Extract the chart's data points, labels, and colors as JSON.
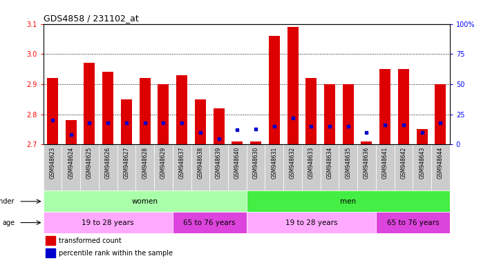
{
  "title": "GDS4858 / 231102_at",
  "samples": [
    "GSM948623",
    "GSM948624",
    "GSM948625",
    "GSM948626",
    "GSM948627",
    "GSM948628",
    "GSM948629",
    "GSM948637",
    "GSM948638",
    "GSM948639",
    "GSM948640",
    "GSM948630",
    "GSM948631",
    "GSM948632",
    "GSM948633",
    "GSM948634",
    "GSM948635",
    "GSM948636",
    "GSM948641",
    "GSM948642",
    "GSM948643",
    "GSM948644"
  ],
  "transformed_count": [
    2.92,
    2.78,
    2.97,
    2.94,
    2.85,
    2.92,
    2.9,
    2.93,
    2.85,
    2.82,
    2.71,
    2.71,
    3.06,
    3.09,
    2.92,
    2.9,
    2.9,
    2.71,
    2.95,
    2.95,
    2.75,
    2.9
  ],
  "percentile_rank": [
    20,
    8,
    18,
    18,
    18,
    18,
    18,
    18,
    10,
    5,
    12,
    13,
    15,
    22,
    15,
    15,
    15,
    10,
    16,
    16,
    10,
    18
  ],
  "ymin": 2.7,
  "ymax": 3.1,
  "yticks_left": [
    2.7,
    2.8,
    2.9,
    3.0,
    3.1
  ],
  "yticks_right": [
    0,
    25,
    50,
    75,
    100
  ],
  "bar_color": "#dd0000",
  "dot_color": "#0000cc",
  "gender_spans": [
    {
      "label": "women",
      "start": 0,
      "end": 11,
      "color": "#aaffaa"
    },
    {
      "label": "men",
      "start": 11,
      "end": 22,
      "color": "#44ee44"
    }
  ],
  "age_spans": [
    {
      "label": "19 to 28 years",
      "start": 0,
      "end": 7,
      "color": "#ffaaff"
    },
    {
      "label": "65 to 76 years",
      "start": 7,
      "end": 11,
      "color": "#dd44dd"
    },
    {
      "label": "19 to 28 years",
      "start": 11,
      "end": 18,
      "color": "#ffaaff"
    },
    {
      "label": "65 to 76 years",
      "start": 18,
      "end": 22,
      "color": "#dd44dd"
    }
  ],
  "legend_items": [
    {
      "label": "transformed count",
      "color": "#dd0000"
    },
    {
      "label": "percentile rank within the sample",
      "color": "#0000cc"
    }
  ],
  "background_color": "#ffffff",
  "xtick_bg_color": "#cccccc"
}
